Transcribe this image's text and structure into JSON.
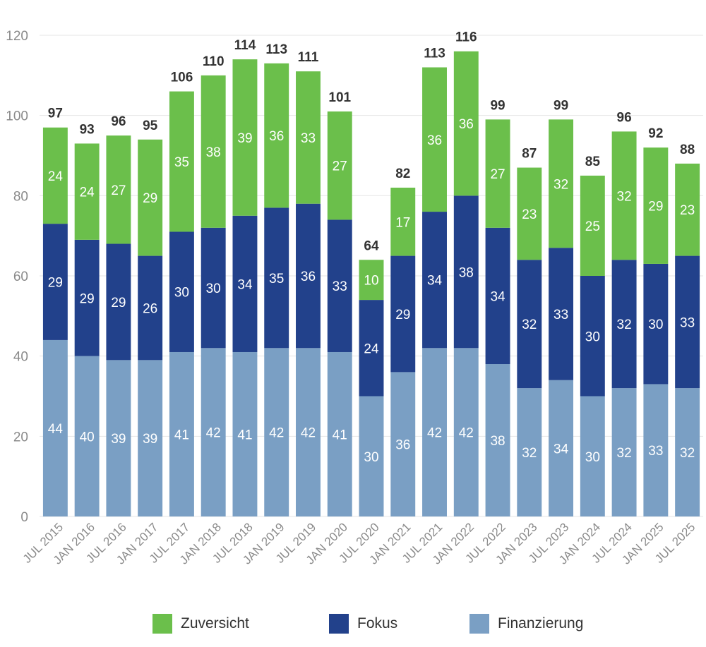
{
  "chart_data": {
    "type": "bar",
    "stacked": true,
    "categories": [
      "JUL 2015",
      "JAN 2016",
      "JUL 2016",
      "JAN 2017",
      "JUL 2017",
      "JAN 2018",
      "JUL 2018",
      "JAN 2019",
      "JUL 2019",
      "JAN 2020",
      "JUL 2020",
      "JAN 2021",
      "JUL 2021",
      "JAN 2022",
      "JUL 2022",
      "JAN 2023",
      "JUL 2023",
      "JAN 2024",
      "JUL 2024",
      "JAN 2025",
      "JUL 2025"
    ],
    "series": [
      {
        "name": "Finanzierung",
        "color": "#7a9fc4",
        "values": [
          44,
          40,
          39,
          39,
          41,
          42,
          41,
          42,
          42,
          41,
          30,
          36,
          42,
          42,
          38,
          32,
          34,
          30,
          32,
          33,
          32
        ]
      },
      {
        "name": "Fokus",
        "color": "#22418b",
        "values": [
          29,
          29,
          29,
          26,
          30,
          30,
          34,
          35,
          36,
          33,
          24,
          29,
          34,
          38,
          34,
          32,
          33,
          30,
          32,
          30,
          33
        ]
      },
      {
        "name": "Zuversicht",
        "color": "#6bbf4b",
        "values": [
          24,
          24,
          27,
          29,
          35,
          38,
          39,
          36,
          33,
          27,
          10,
          17,
          36,
          36,
          27,
          23,
          32,
          25,
          32,
          29,
          23
        ]
      }
    ],
    "totals": [
      97,
      93,
      96,
      95,
      106,
      110,
      114,
      113,
      111,
      101,
      64,
      82,
      113,
      116,
      99,
      87,
      99,
      85,
      96,
      92,
      88
    ],
    "ylim": [
      0,
      120
    ],
    "yticks": [
      0,
      20,
      40,
      60,
      80,
      100,
      120
    ],
    "grid": true,
    "legend_position": "bottom"
  },
  "legend": {
    "items": [
      {
        "label": "Zuversicht",
        "color": "#6bbf4b"
      },
      {
        "label": "Fokus",
        "color": "#22418b"
      },
      {
        "label": "Finanzierung",
        "color": "#7a9fc4"
      }
    ]
  }
}
